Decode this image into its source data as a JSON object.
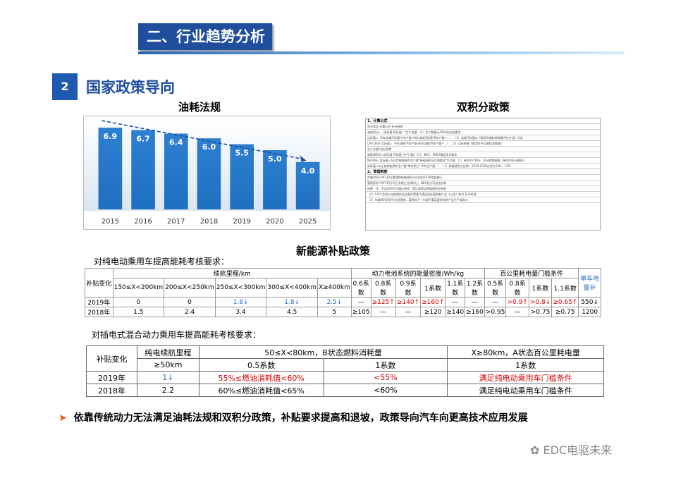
{
  "section_title": "二、行业趋势分析",
  "policy": {
    "number": "2",
    "title": "国家政策导向"
  },
  "fuel_chart_title": "油耗法规",
  "dual_credit_title": "双积分政策",
  "subsidy_title": "新能源补贴政策",
  "chart_data": {
    "type": "bar",
    "categories": [
      "2015",
      "2016",
      "2017",
      "2018",
      "2019",
      "2020",
      "2025"
    ],
    "values": [
      6.9,
      6.7,
      6.4,
      6.0,
      5.5,
      5.0,
      4.0
    ],
    "value_labels": [
      "6.9",
      "6.7",
      "6.4",
      "6.0",
      "5.5",
      "5.0",
      "4.0"
    ],
    "ylim": [
      0,
      7.5
    ],
    "colors": {
      "bar": "#1f6fc1",
      "trend": "#1f4e9c"
    }
  },
  "dual_credit": {
    "rows": [
      "1、计算公式",
      "积分类型    计算公式    补充说明",
      "油耗积分=（达标值-实际值）*生产总量    （1）生产数量≥2000台适合使用",
      "达标值=（A车油耗目标值*A车产量+B车油耗目标值*B车产量+…）    （1）油耗目标值以《乘用车燃料消耗量评价方法》为准",
      "CAFC积分    实际值=（A车油耗*A车产量+B车油耗*B车产量+…）    （2）达标系数《乘用车平均燃料消耗量》",
      "生产总量*达标系数",
      "新能源积分=实际值-目标值    生产门槛：5万、BEV、PHEV满足技术要求",
      "NEV积分    目标值=车企传统能源车生产量*新能源积分比例要求*生产量    （1）单车生产积分，积分转换根据《单车积分计算表》",
      "实际值=车企各新能源车生产量*单车积分（A车生产量…）    （1）新能源积分比例：2019-2020分别为10%、12%",
      "2、管理制度",
      "实施时间    CAFC积分管理和新能源积分分别自2018年起施行",
      "管理原则    CAFC积分可在关联企业间转让；NEV积分可自由交易",
      "抵偿    （1）不足的积分可通过结转、受让或购买新能源积分抵偿",
      "（2）CAFC负积分未抵偿的企业暂停受理不满足目标值的新产品《公告》和3C证书申请",
      "（3）年度NEV负积分未抵偿的，暂停其下一年度不满足要求的新产品生产或进口"
    ]
  },
  "bev_table": {
    "intro": "对纯电动乘用车提高能耗考核要求：",
    "corner": "补贴变化",
    "range_header": "续航里程/km",
    "energy_header": "动力电池系统的能量密度/Wh/kg",
    "consumption_header": "百公里耗电量门槛条件",
    "single_car_header": "单车电量补",
    "range_cols": [
      "150≤X<200km",
      "200≤X<250km",
      "250≤X<300km",
      "300≤X<400km",
      "X≥400km"
    ],
    "energy_cols": [
      "0.6系数",
      "0.8系数",
      "0.9系数",
      "1系数",
      "1.1系数",
      "1.2系数"
    ],
    "consumption_cols": [
      "0.5系数",
      "0.8系数",
      "1系数",
      "1.1系数"
    ],
    "rows": [
      {
        "year": "2019年",
        "range": [
          "0",
          "0",
          "1.8↓",
          "1.8↓",
          "2.5↓"
        ],
        "energy": [
          "—",
          "≥125↑",
          "≥140↑",
          "≥160↑",
          "—",
          "—"
        ],
        "consumption": [
          "—",
          ">0.9↑",
          ">0.8↓",
          "≥0.65↑"
        ],
        "single": "550↓"
      },
      {
        "year": "2018年",
        "range": [
          "1.5",
          "2.4",
          "3.4",
          "4.5",
          "5"
        ],
        "energy": [
          "≥105",
          "—",
          "—",
          "≥120",
          "≥140",
          "≥160"
        ],
        "consumption": [
          ">0.95",
          "—",
          ">0.75",
          "≥0.75"
        ],
        "single": "1200"
      }
    ]
  },
  "phev_table": {
    "intro": "对插电式混合动力乘用车提高能耗考核要求：",
    "corner": "补贴变化",
    "range_header": "纯电续航里程",
    "fuel_header": "50≤X<80km，B状态燃料消耗量",
    "power_header": "X≥80km，A状态百公里耗电量",
    "range_sub": "≥50km",
    "fuel_sub_1": "0.5系数",
    "fuel_sub_2": "1系数",
    "power_sub": "1系数",
    "rows": [
      {
        "year": "2019年",
        "subsidy": "1↓",
        "c05": "55%≤燃油消耗值<60%",
        "c1": "<55%",
        "power": "满足纯电动乘用车门槛条件"
      },
      {
        "year": "2018年",
        "subsidy": "2.2",
        "c05": "60%≤燃油消耗值<65%",
        "c1": "<60%",
        "power": "满足纯电动乘用车门槛条件"
      }
    ]
  },
  "conclusion": "依靠传统动力无法满足油耗法规和双积分政策，补贴要求提高和退坡，政策导向汽车向更高技术应用发展",
  "watermark": "EDC电驱未来"
}
